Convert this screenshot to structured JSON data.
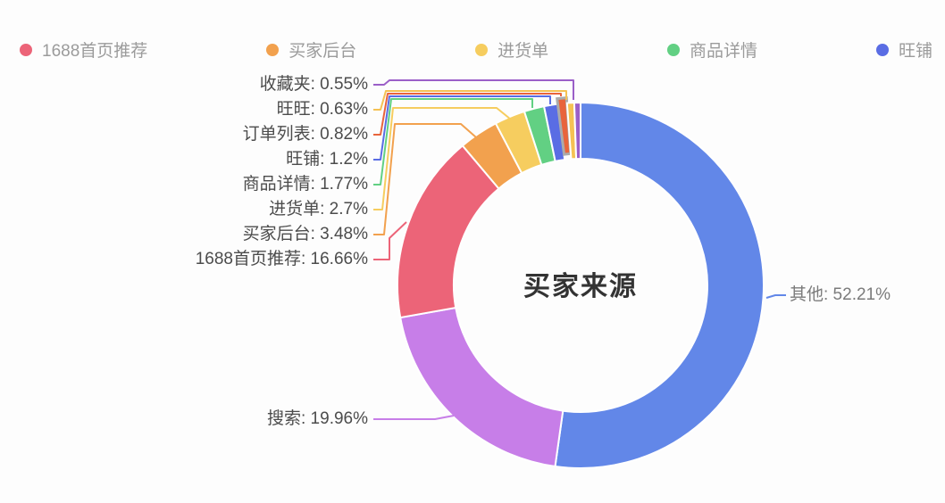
{
  "legend": {
    "items": [
      {
        "label": "1688首页推荐",
        "color": "#ec6478"
      },
      {
        "label": "买家后台",
        "color": "#f2a14e"
      },
      {
        "label": "进货单",
        "color": "#f6cd5f"
      },
      {
        "label": "商品详情",
        "color": "#62d083"
      },
      {
        "label": "旺铺",
        "color": "#5a6de4"
      }
    ]
  },
  "chart_data": {
    "type": "pie",
    "subtype": "donut",
    "center_title": "买家来源",
    "unit": "%",
    "legend_position": "top",
    "label_format": "name: value%",
    "slices": [
      {
        "name": "其他",
        "value": 52.21,
        "color": "#6287e8"
      },
      {
        "name": "搜索",
        "value": 19.96,
        "color": "#c77ee8"
      },
      {
        "name": "1688首页推荐",
        "value": 16.66,
        "color": "#ec6478"
      },
      {
        "name": "买家后台",
        "value": 3.48,
        "color": "#f2a14e"
      },
      {
        "name": "进货单",
        "value": 2.7,
        "color": "#f6cd5f"
      },
      {
        "name": "商品详情",
        "value": 1.77,
        "color": "#62d083"
      },
      {
        "name": "旺铺",
        "value": 1.2,
        "color": "#5a6de4"
      },
      {
        "name": "订单列表",
        "value": 0.82,
        "color": "#e8643c",
        "highlighted": true
      },
      {
        "name": "旺旺",
        "value": 0.63,
        "color": "#f5c254"
      },
      {
        "name": "收藏夹",
        "value": 0.55,
        "color": "#9b5fc8"
      }
    ]
  }
}
